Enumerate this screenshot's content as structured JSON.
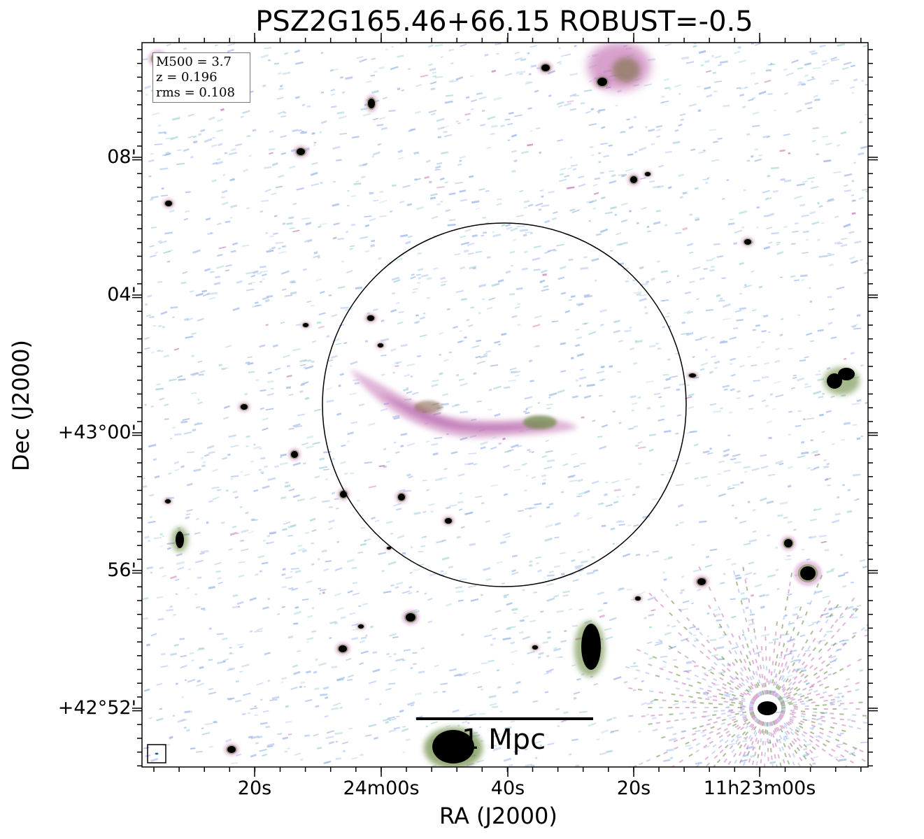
{
  "figure": {
    "title": "PSZ2G165.46+66.15 ROBUST=-0.5",
    "info": {
      "m500": "M500 = 3.7",
      "z": "z = 0.196",
      "rms": "rms = 0.108"
    },
    "xlabel": "RA (J2000)",
    "ylabel": "Dec (J2000)",
    "xticks": [
      "20s",
      "24m00s",
      "40s",
      "20s",
      "11h23m00s"
    ],
    "yticks": [
      "08'",
      "04'",
      "+43°00'",
      "56'",
      "+42°52'"
    ],
    "scalebar_label": "1 Mpc",
    "colors": {
      "noise_blue": "#9fb8e8",
      "noise_cyan": "#a8d4dc",
      "emission_pink": "#c878b8",
      "emission_green": "#6a8a40",
      "source_core": "#000000",
      "circle": "#000000"
    }
  }
}
